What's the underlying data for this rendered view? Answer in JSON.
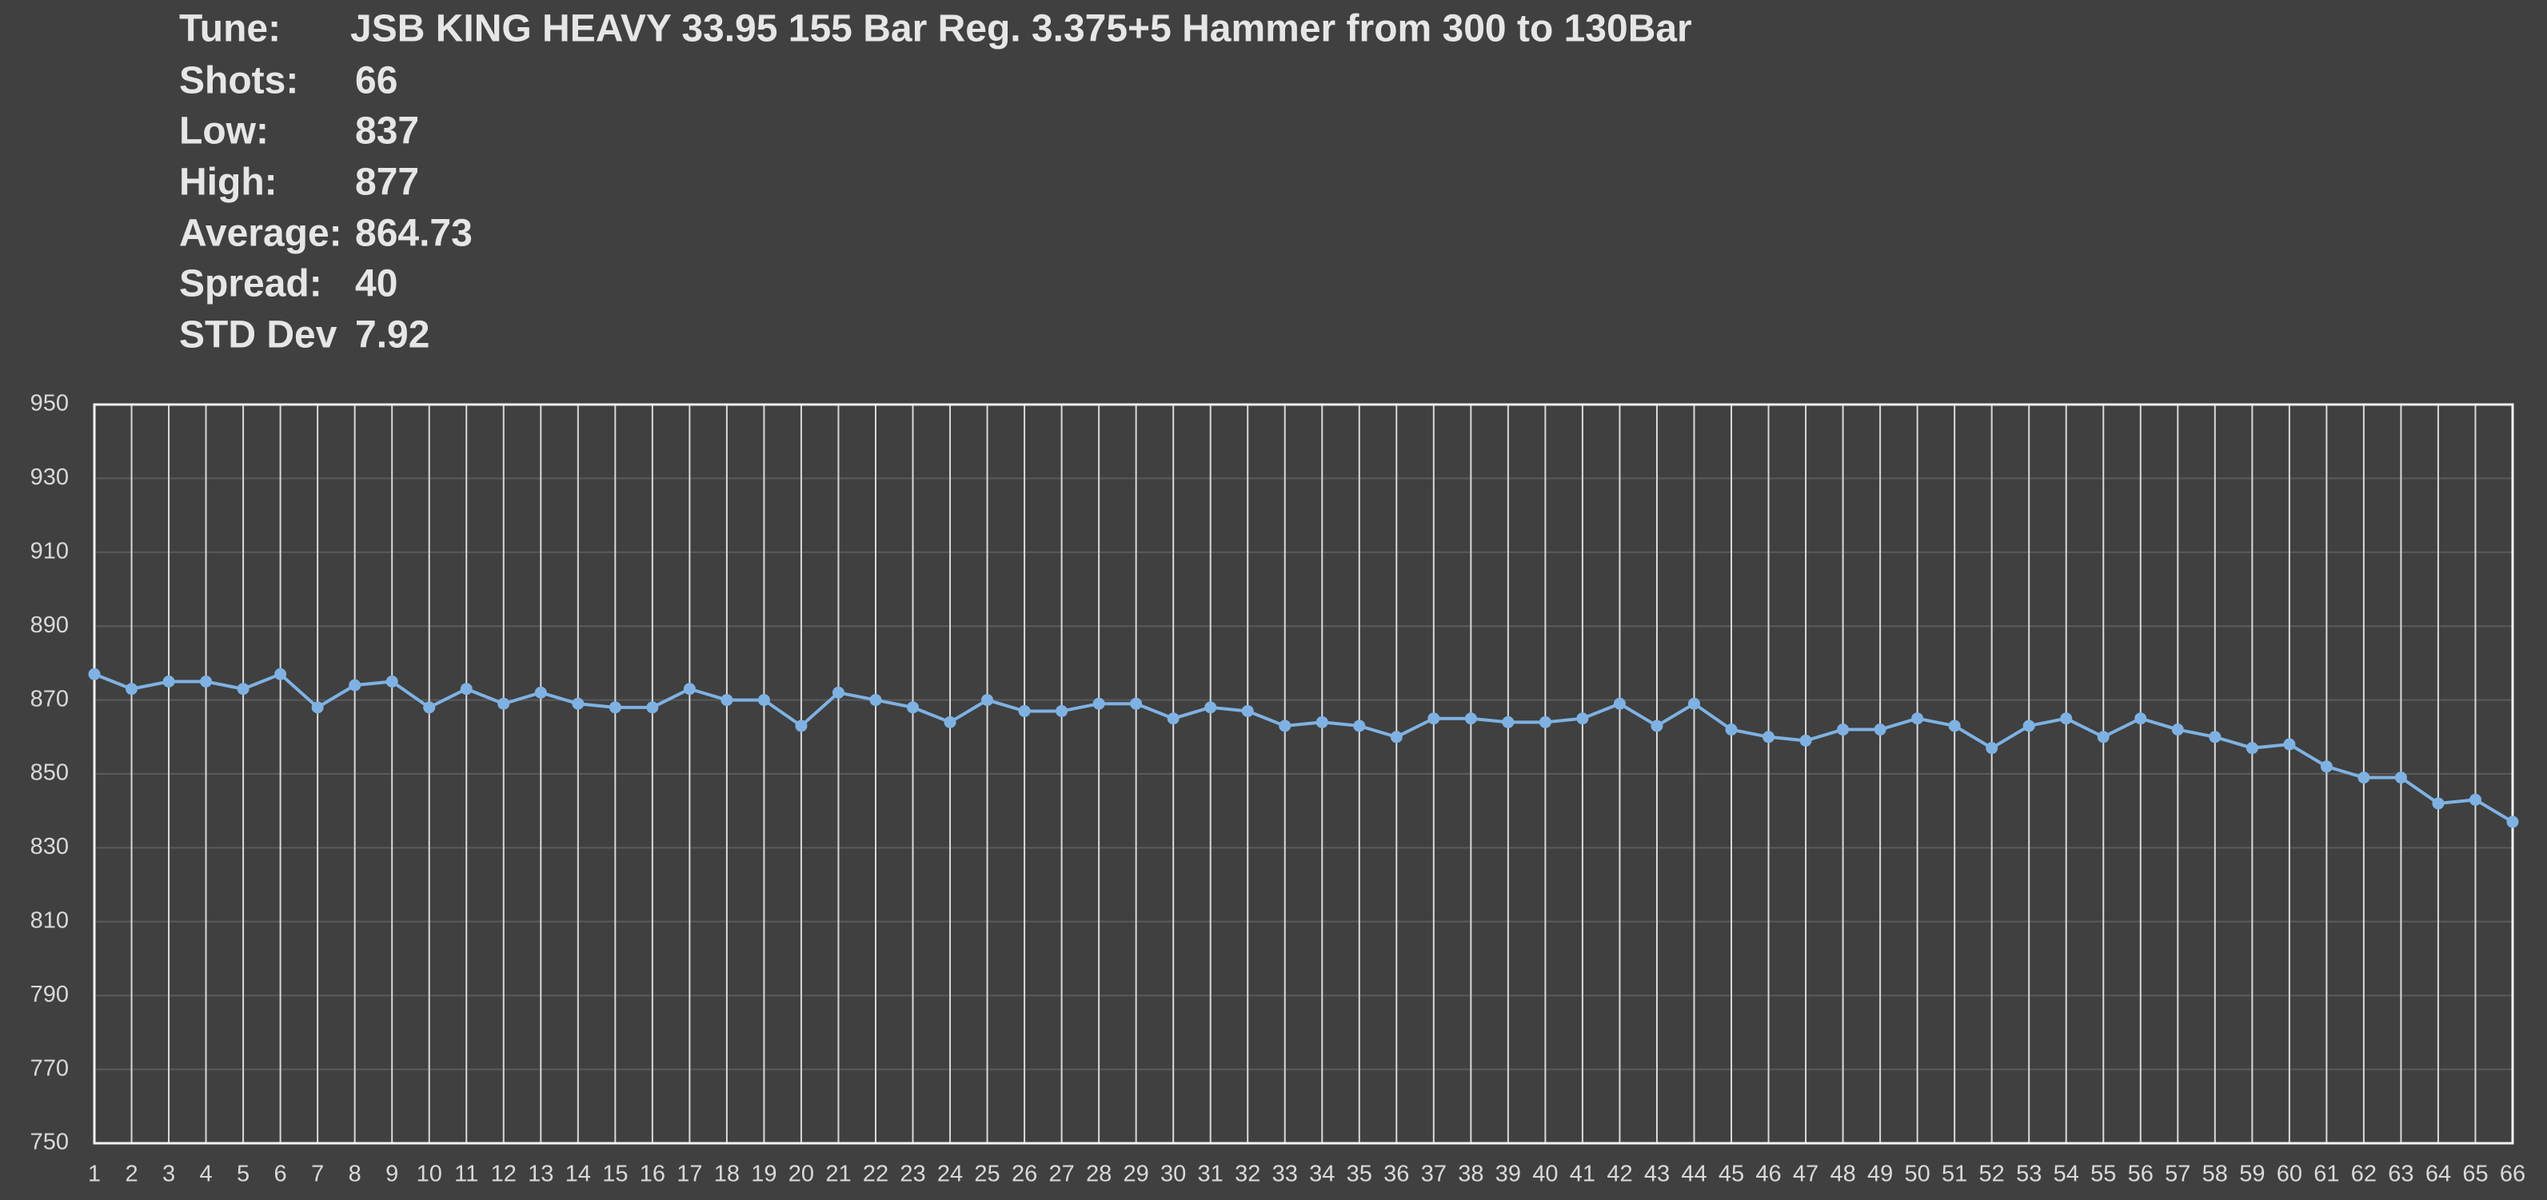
{
  "stats": [
    {
      "label": "Tune:",
      "value": "JSB KING HEAVY 33.95 155 Bar Reg. 3.375+5 Hammer from 300 to 130Bar"
    },
    {
      "label": "Shots:",
      "value": "66"
    },
    {
      "label": "Low:",
      "value": "837"
    },
    {
      "label": "High:",
      "value": "877"
    },
    {
      "label": "Average:",
      "value": "864.73"
    },
    {
      "label": "Spread:",
      "value": "40"
    },
    {
      "label": "STD Dev",
      "value": "7.92"
    }
  ],
  "chart_data": {
    "type": "line",
    "categories": [
      1,
      2,
      3,
      4,
      5,
      6,
      7,
      8,
      9,
      10,
      11,
      12,
      13,
      14,
      15,
      16,
      17,
      18,
      19,
      20,
      21,
      22,
      23,
      24,
      25,
      26,
      27,
      28,
      29,
      30,
      31,
      32,
      33,
      34,
      35,
      36,
      37,
      38,
      39,
      40,
      41,
      42,
      43,
      44,
      45,
      46,
      47,
      48,
      49,
      50,
      51,
      52,
      53,
      54,
      55,
      56,
      57,
      58,
      59,
      60,
      61,
      62,
      63,
      64,
      65,
      66
    ],
    "values": [
      877,
      873,
      875,
      875,
      873,
      877,
      868,
      874,
      875,
      868,
      873,
      869,
      872,
      869,
      868,
      868,
      873,
      870,
      870,
      863,
      872,
      870,
      868,
      864,
      870,
      867,
      867,
      869,
      869,
      865,
      868,
      867,
      863,
      864,
      863,
      860,
      865,
      865,
      864,
      864,
      865,
      869,
      863,
      869,
      862,
      860,
      859,
      862,
      862,
      865,
      863,
      857,
      863,
      865,
      860,
      865,
      862,
      860,
      857,
      858,
      852,
      849,
      849,
      842,
      843,
      837
    ],
    "color": "#7fb2e3",
    "ylim": [
      750,
      950
    ],
    "yticks": [
      750,
      770,
      790,
      810,
      830,
      850,
      870,
      890,
      910,
      930,
      950
    ],
    "grid": true
  }
}
